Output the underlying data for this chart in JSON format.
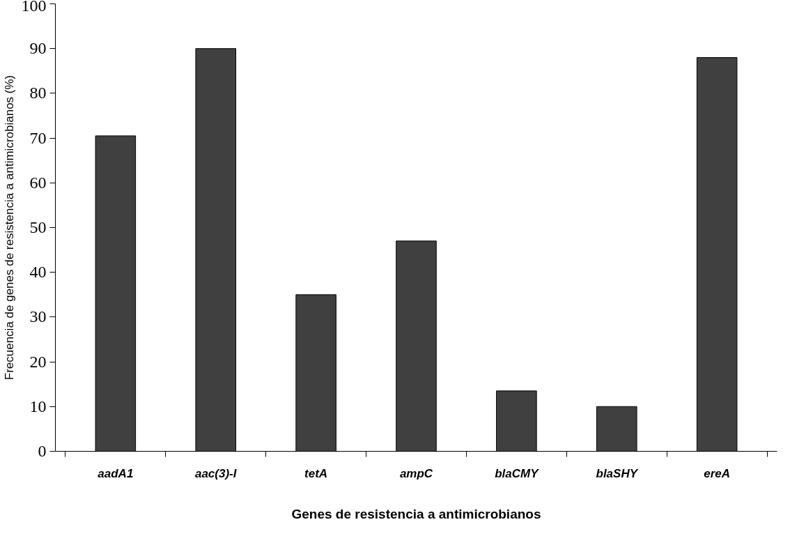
{
  "chart_data": {
    "type": "bar",
    "xlabel": "Genes de resistencia a antimicrobianos",
    "ylabel": "Frecuencia de genes de resistencia a antimicrobianos (%)",
    "categories": [
      "aadA1",
      "aac(3)-I",
      "tetA",
      "ampC",
      "blaCMY",
      "blaSHY",
      "ereA"
    ],
    "values": [
      70.5,
      90,
      35,
      47,
      13.5,
      10,
      88
    ],
    "color": "#404040",
    "ylim": [
      0,
      100
    ],
    "yticks": [
      0,
      10,
      20,
      30,
      40,
      50,
      60,
      70,
      80,
      90,
      100
    ],
    "grid": false
  }
}
